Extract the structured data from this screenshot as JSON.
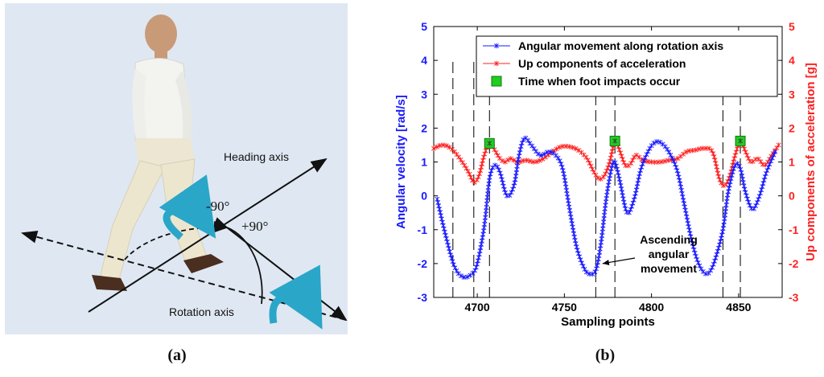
{
  "panel_a": {
    "caption": "(a)",
    "heading_axis_label": "Heading axis",
    "rotation_axis_label": "Rotation axis",
    "angle_neg_label": "-90°",
    "angle_pos_label": "+90°",
    "colors": {
      "background": "#dfe8f2",
      "rotation_arrow": "#2aa6c8"
    }
  },
  "panel_b": {
    "caption": "(b)",
    "annotation": [
      "Ascending",
      "angular",
      "movement"
    ]
  },
  "chart_data": {
    "type": "line",
    "title": "",
    "xlabel": "Sampling points",
    "ylabel": "Angular velocity [rad/s]",
    "ylabel_right": "Up components of acceleration [g]",
    "xlim": [
      4675,
      4875
    ],
    "ylim": [
      -3,
      5
    ],
    "ylim_right": [
      -3,
      5
    ],
    "x_ticks": [
      "4700",
      "4750",
      "4800",
      "4850"
    ],
    "y_ticks": [
      "-3",
      "-2",
      "-1",
      "0",
      "1",
      "2",
      "3",
      "4",
      "5"
    ],
    "y_ticks_right": [
      "-3",
      "-2",
      "-1",
      "0",
      "1",
      "2",
      "3",
      "4",
      "5"
    ],
    "grid": false,
    "legend_position": "top-right",
    "legend": [
      "Angular movement along rotation axis",
      "Up components of acceleration",
      "Time when foot impacts occur"
    ],
    "colors": {
      "angular": "#1a1aff",
      "acceleration": "#ff2020",
      "impact": "#22cc22"
    },
    "vertical_dashed_lines_x": [
      4686,
      4698,
      4707,
      4768,
      4779,
      4841,
      4851
    ],
    "series": [
      {
        "name": "Angular movement along rotation axis",
        "axis": "left",
        "x": [
          4677,
          4682,
          4687,
          4692,
          4697,
          4700,
          4704,
          4707,
          4710,
          4713,
          4717,
          4721,
          4724,
          4727,
          4731,
          4736,
          4741,
          4745,
          4749,
          4753,
          4757,
          4761,
          4764,
          4768,
          4771,
          4774,
          4777,
          4779,
          4782,
          4786,
          4790,
          4794,
          4799,
          4803,
          4807,
          4811,
          4815,
          4819,
          4823,
          4827,
          4831,
          4834,
          4837,
          4841,
          4844,
          4848,
          4851,
          4854,
          4858,
          4862,
          4866,
          4871
        ],
        "y": [
          -0.1,
          -1.2,
          -2.1,
          -2.4,
          -2.3,
          -2.0,
          -0.9,
          0.5,
          0.9,
          0.7,
          0.0,
          0.3,
          1.2,
          1.7,
          1.5,
          1.2,
          1.3,
          1.2,
          0.8,
          -0.4,
          -1.5,
          -2.1,
          -2.3,
          -2.2,
          -1.4,
          -0.1,
          0.8,
          1.0,
          0.4,
          -0.5,
          -0.1,
          0.8,
          1.4,
          1.6,
          1.5,
          1.2,
          0.7,
          -0.3,
          -1.3,
          -2.0,
          -2.3,
          -2.2,
          -1.8,
          -1.0,
          0.1,
          0.9,
          0.8,
          0.1,
          -0.4,
          0.0,
          0.7,
          1.3
        ]
      },
      {
        "name": "Up components of acceleration",
        "axis": "right",
        "x": [
          4675,
          4680,
          4685,
          4690,
          4695,
          4698,
          4701,
          4704,
          4707,
          4710,
          4713,
          4716,
          4719,
          4723,
          4728,
          4733,
          4738,
          4743,
          4748,
          4753,
          4758,
          4763,
          4767,
          4770,
          4773,
          4776,
          4779,
          4782,
          4785,
          4788,
          4791,
          4795,
          4800,
          4805,
          4810,
          4815,
          4820,
          4825,
          4830,
          4835,
          4839,
          4842,
          4845,
          4848,
          4851,
          4854,
          4857,
          4861,
          4865,
          4869,
          4873
        ],
        "y": [
          1.4,
          1.5,
          1.4,
          1.1,
          0.7,
          0.4,
          0.6,
          1.2,
          1.55,
          1.35,
          1.1,
          1.0,
          1.1,
          1.0,
          1.05,
          1.0,
          1.1,
          1.3,
          1.45,
          1.45,
          1.35,
          1.1,
          0.7,
          0.5,
          0.6,
          1.0,
          1.6,
          1.3,
          0.9,
          0.95,
          1.2,
          1.05,
          1.0,
          1.0,
          1.05,
          1.1,
          1.3,
          1.35,
          1.4,
          1.3,
          0.5,
          0.3,
          0.6,
          1.2,
          1.6,
          1.3,
          1.0,
          1.1,
          0.9,
          1.2,
          1.5
        ]
      },
      {
        "name": "Time when foot impacts occur",
        "axis": "right",
        "x": [
          4707,
          4779,
          4851
        ],
        "y": [
          1.55,
          1.62,
          1.62
        ]
      }
    ]
  }
}
